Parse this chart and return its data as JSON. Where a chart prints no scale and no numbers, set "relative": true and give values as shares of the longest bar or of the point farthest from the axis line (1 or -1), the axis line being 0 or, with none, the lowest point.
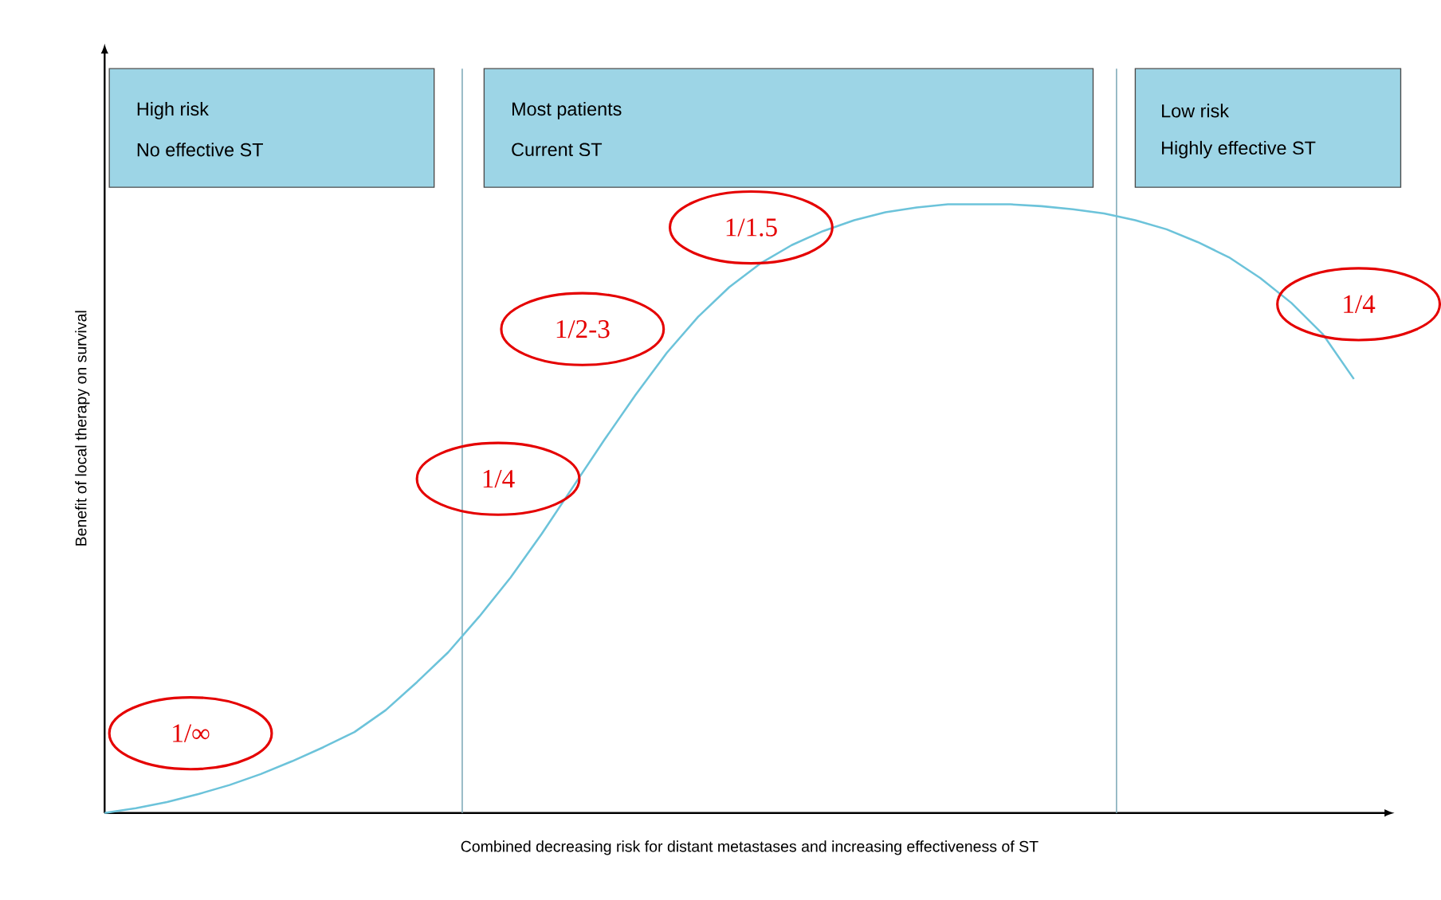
{
  "chart_data": {
    "type": "line",
    "relative": true,
    "color": "#6cc3da",
    "categories": [
      null,
      null,
      null,
      null,
      null,
      null,
      null,
      null,
      null,
      null,
      null,
      null,
      null,
      null,
      null,
      null,
      null,
      null,
      null,
      null,
      null,
      null,
      null,
      null,
      null,
      null,
      null,
      null,
      null,
      null,
      null,
      null,
      null,
      null,
      null,
      null,
      null,
      null,
      null,
      null,
      null
    ],
    "values": [
      0,
      0.008,
      0.018,
      0.031,
      0.046,
      0.064,
      0.085,
      0.108,
      0.133,
      0.169,
      0.215,
      0.264,
      0.323,
      0.387,
      0.459,
      0.536,
      0.613,
      0.687,
      0.756,
      0.815,
      0.864,
      0.903,
      0.933,
      0.956,
      0.974,
      0.987,
      0.995,
      1.0,
      1.0,
      1.0,
      0.997,
      0.992,
      0.985,
      0.974,
      0.959,
      0.938,
      0.913,
      0.879,
      0.838,
      0.787,
      0.713
    ],
    "xlabel": "Combined decreasing risk for distant metastases and increasing effectiveness of ST",
    "ylabel": "Benefit of local therapy on survival",
    "annotations": [
      "High risk",
      "No effective ST",
      "Most patients",
      "Current ST",
      "Low risk",
      "Highly effective ST",
      "1/∞",
      "1/4",
      "1/2-3",
      "1/1.5",
      "1/4"
    ]
  }
}
